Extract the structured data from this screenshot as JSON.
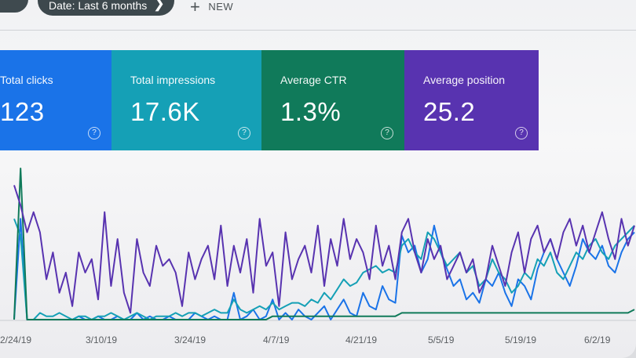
{
  "toolbar": {
    "date_filter": "Date: Last 6 months",
    "new_label": "NEW"
  },
  "cards": [
    {
      "label": "Total clicks",
      "value": "123",
      "color": "#1a73e8"
    },
    {
      "label": "Total impressions",
      "value": "17.6K",
      "color": "#15a0b6"
    },
    {
      "label": "Average CTR",
      "value": "1.3%",
      "color": "#107a5a"
    },
    {
      "label": "Average position",
      "value": "25.2",
      "color": "#5833b0"
    }
  ],
  "help_glyph": "?",
  "chart_data": {
    "type": "line",
    "x_tick_labels": [
      "2/24/19",
      "3/10/19",
      "3/24/19",
      "4/7/19",
      "4/21/19",
      "5/5/19",
      "5/19/19",
      "6/2/19"
    ],
    "series": [
      {
        "metric": "Total clicks",
        "color": "#1a73e8",
        "values": [
          0,
          30,
          0,
          0,
          0,
          0,
          0,
          0,
          0,
          0,
          1,
          0,
          0,
          1,
          0,
          0,
          1,
          0,
          0,
          2,
          0,
          1,
          0,
          0,
          1,
          0,
          0,
          0,
          2,
          1,
          0,
          1,
          0,
          0,
          8,
          0,
          1,
          3,
          0,
          1,
          6,
          0,
          2,
          0,
          3,
          1,
          0,
          2,
          4,
          0,
          3,
          6,
          2,
          1,
          8,
          4,
          3,
          10,
          6,
          5,
          25,
          20,
          22,
          14,
          18,
          28,
          20,
          15,
          10,
          12,
          6,
          8,
          5,
          12,
          10,
          14,
          8,
          4,
          12,
          10,
          6,
          15,
          20,
          24,
          18,
          14,
          10,
          16,
          24,
          20,
          18,
          22,
          16,
          14,
          20,
          24,
          26
        ]
      },
      {
        "metric": "Total impressions",
        "color": "#15a0b6",
        "values": [
          30,
          25,
          0,
          0,
          2,
          1,
          1,
          2,
          1,
          0,
          1,
          1,
          0,
          1,
          1,
          2,
          1,
          0,
          1,
          2,
          1,
          0,
          1,
          1,
          1,
          2,
          1,
          2,
          2,
          1,
          2,
          3,
          2,
          2,
          6,
          3,
          2,
          3,
          4,
          3,
          5,
          3,
          4,
          5,
          5,
          4,
          6,
          5,
          8,
          6,
          9,
          12,
          10,
          11,
          14,
          15,
          16,
          14,
          15,
          14,
          22,
          24,
          20,
          18,
          26,
          24,
          20,
          16,
          18,
          20,
          14,
          16,
          10,
          12,
          18,
          14,
          12,
          8,
          10,
          14,
          12,
          18,
          16,
          20,
          14,
          12,
          16,
          20,
          18,
          22,
          24,
          20,
          18,
          22,
          24,
          26,
          28
        ]
      },
      {
        "metric": "Average CTR",
        "color": "#107a5a",
        "values": [
          0,
          45,
          0,
          0,
          0,
          0,
          0,
          0,
          0,
          0,
          0,
          0,
          0,
          0,
          0,
          0,
          0,
          0,
          0,
          0,
          0,
          0,
          0,
          0,
          0,
          0,
          0,
          0,
          0,
          0,
          0,
          0,
          0,
          0,
          0,
          0,
          0,
          0,
          0,
          0,
          1,
          1,
          1,
          1,
          1,
          1,
          1,
          1,
          1,
          1,
          1,
          1,
          1,
          1,
          1,
          1,
          1,
          1,
          1,
          1,
          2,
          2,
          2,
          2,
          2,
          2,
          2,
          2,
          2,
          2,
          2,
          2,
          2,
          2,
          2,
          2,
          2,
          2,
          2,
          2,
          2,
          2,
          2,
          2,
          2,
          2,
          2,
          2,
          2,
          2,
          2,
          2,
          2,
          2,
          2,
          2,
          3
        ]
      },
      {
        "metric": "Average position",
        "color": "#5833b0",
        "values": [
          40,
          34,
          26,
          32,
          26,
          12,
          20,
          8,
          14,
          4,
          20,
          14,
          18,
          6,
          32,
          10,
          24,
          8,
          2,
          24,
          14,
          10,
          22,
          16,
          18,
          14,
          4,
          20,
          12,
          18,
          22,
          12,
          28,
          10,
          22,
          14,
          24,
          8,
          30,
          16,
          20,
          4,
          26,
          12,
          18,
          22,
          14,
          28,
          10,
          24,
          16,
          30,
          18,
          24,
          20,
          12,
          28,
          16,
          22,
          12,
          26,
          30,
          20,
          14,
          24,
          18,
          22,
          12,
          16,
          20,
          14,
          18,
          8,
          12,
          22,
          16,
          10,
          20,
          26,
          14,
          24,
          28,
          20,
          24,
          18,
          26,
          30,
          22,
          28,
          20,
          26,
          32,
          24,
          18,
          30,
          22,
          28
        ]
      }
    ]
  }
}
